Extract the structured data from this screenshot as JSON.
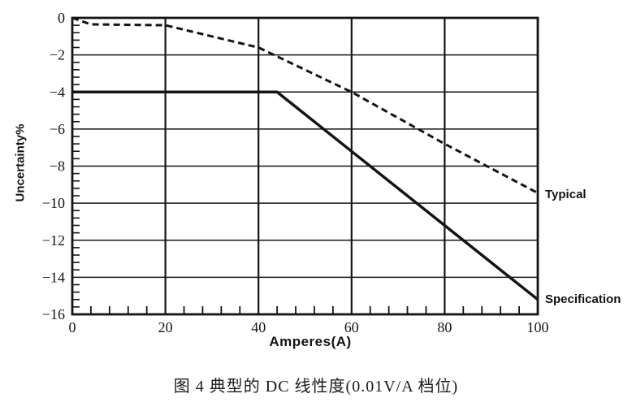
{
  "page": {
    "caption": "图 4 典型的 DC 线性度(0.01V/A 档位)"
  },
  "chart_data": {
    "type": "line",
    "title": "",
    "xlabel": "Amperes(A)",
    "ylabel": "Uncertainty%",
    "xlim": [
      0,
      100
    ],
    "ylim": [
      -16,
      0
    ],
    "grid": true,
    "x_major_ticks": [
      0,
      20,
      40,
      60,
      80,
      100
    ],
    "x_tick_labels": [
      "0",
      "20",
      "40",
      "60",
      "80",
      "100"
    ],
    "x_minor_step": 4,
    "y_major_ticks": [
      0,
      -2,
      -4,
      -6,
      -8,
      -10,
      -12,
      -14,
      -16
    ],
    "y_tick_labels": [
      "0",
      "−2",
      "−4",
      "−6",
      "−8",
      "−10",
      "−12",
      "−14",
      "−16"
    ],
    "y_minor_step": 0.4,
    "legend_position": "right-of-line-endpoints",
    "line_color": "#141414",
    "series": [
      {
        "name": "Typical",
        "style": "dashed",
        "points": [
          [
            0,
            0
          ],
          [
            4,
            -0.35
          ],
          [
            20,
            -0.4
          ],
          [
            40,
            -1.6
          ],
          [
            60,
            -4
          ],
          [
            80,
            -6.8
          ],
          [
            100,
            -9.45
          ]
        ]
      },
      {
        "name": "Specification",
        "style": "solid",
        "points": [
          [
            0,
            -4
          ],
          [
            44,
            -4
          ],
          [
            100,
            -15.2
          ]
        ]
      }
    ]
  }
}
